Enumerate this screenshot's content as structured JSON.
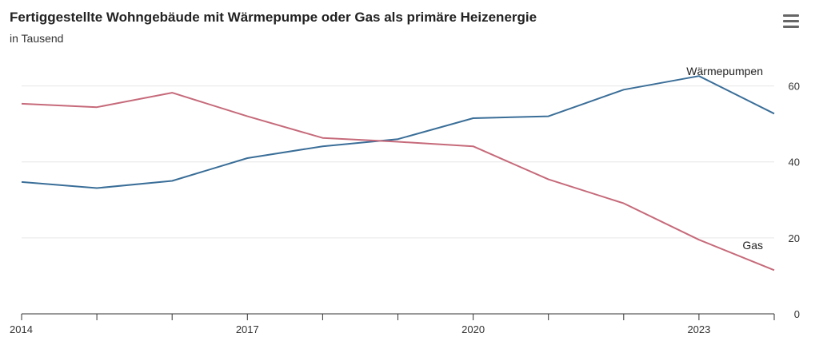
{
  "header": {
    "title": "Fertiggestellte Wohngebäude mit Wärmepumpe oder Gas als primäre Heizenergie",
    "subtitle": "in Tausend"
  },
  "menu": {
    "icon": "hamburger-menu-icon"
  },
  "chart_data": {
    "type": "line",
    "title": "Fertiggestellte Wohngebäude mit Wärmepumpe oder Gas als primäre Heizenergie",
    "subtitle": "in Tausend",
    "x": [
      2014,
      2015,
      2016,
      2017,
      2018,
      2019,
      2020,
      2021,
      2022,
      2023,
      2024
    ],
    "xticks": [
      2014,
      2017,
      2020,
      2023
    ],
    "yticks": [
      0,
      20,
      40,
      60
    ],
    "ylim": [
      0,
      70
    ],
    "xlim": [
      2014,
      2024
    ],
    "grid": true,
    "series": [
      {
        "name": "Wärmepumpen",
        "color": "#3a6e98",
        "values": [
          34.7,
          33.1,
          35.0,
          41.0,
          44.1,
          46.0,
          51.5,
          52.0,
          59.0,
          62.6,
          52.7
        ]
      },
      {
        "name": "Gas",
        "color": "#c66a7a",
        "values": [
          55.3,
          54.4,
          58.2,
          52.0,
          46.3,
          45.3,
          44.1,
          35.4,
          29.1,
          19.5,
          11.5
        ]
      }
    ]
  }
}
